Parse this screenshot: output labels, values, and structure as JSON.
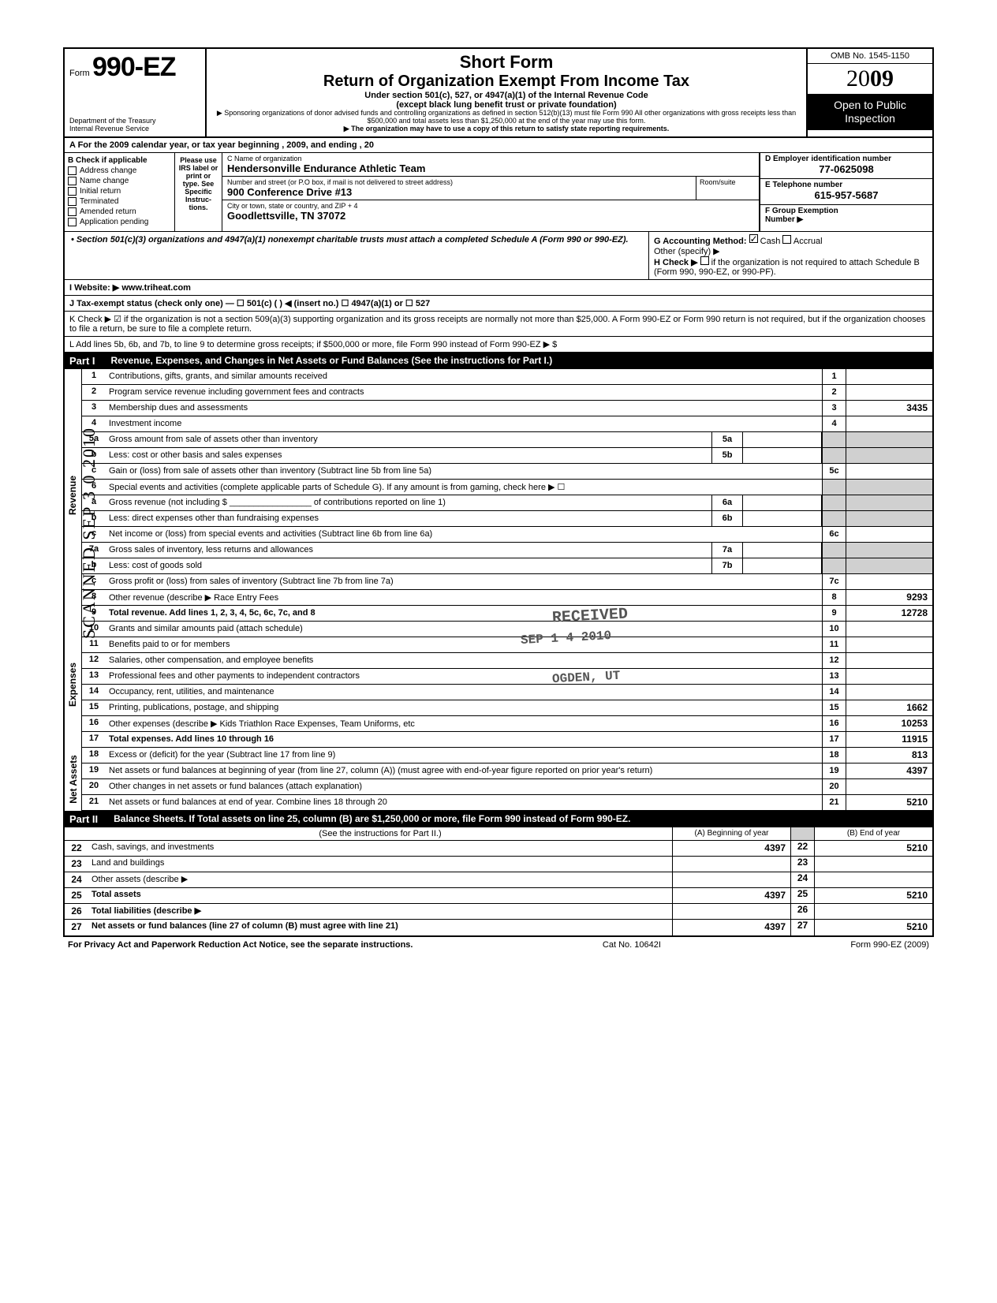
{
  "header": {
    "form_prefix": "Form",
    "form_number": "990-EZ",
    "dept1": "Department of the Treasury",
    "dept2": "Internal Revenue Service",
    "title1": "Short Form",
    "title2": "Return of Organization Exempt From Income Tax",
    "subtitle": "Under section 501(c), 527, or 4947(a)(1) of the Internal Revenue Code",
    "subtitle2": "(except black lung benefit trust or private foundation)",
    "micro1": "▶ Sponsoring organizations of donor advised funds and controlling organizations as defined in section 512(b)(13) must file Form 990  All other organizations with gross receipts less than $500,000 and total assets less than $1,250,000 at the end of the year may use this form.",
    "micro2": "▶ The organization may have to use a copy of this return to satisfy state reporting requirements.",
    "omb": "OMB No. 1545-1150",
    "year_prefix": "20",
    "year_bold": "09",
    "open_public": "Open to Public Inspection"
  },
  "row_a": "A  For the 2009 calendar year, or tax year beginning                                                          , 2009, and ending                                              , 20",
  "section_b": {
    "title": "B  Check if applicable",
    "items": [
      "Address change",
      "Name change",
      "Initial return",
      "Terminated",
      "Amended return",
      "Application pending"
    ]
  },
  "label_col": "Please use IRS label or print or type. See Specific Instruc-tions.",
  "section_c": {
    "name_label": "C  Name of organization",
    "name": "Hendersonville Endurance Athletic Team",
    "addr_label": "Number and street (or P.O  box, if mail is not delivered to street address)",
    "addr": "900 Conference Drive #13",
    "room_label": "Room/suite",
    "city_label": "City or town, state or country, and ZIP + 4",
    "city": "Goodlettsville, TN 37072"
  },
  "section_d": {
    "label": "D Employer identification number",
    "value": "77-0625098"
  },
  "section_e": {
    "label": "E Telephone number",
    "value": "615-957-5687"
  },
  "section_f": {
    "label": "F Group Exemption",
    "label2": "Number ▶"
  },
  "gh": {
    "bullet": "• Section 501(c)(3) organizations and 4947(a)(1) nonexempt charitable trusts must attach a completed Schedule A (Form 990 or 990-EZ).",
    "g_label": "G  Accounting Method:",
    "g_cash": "Cash",
    "g_accrual": "Accrual",
    "g_other": "Other (specify) ▶",
    "h_label": "H  Check ▶",
    "h_text": "if the organization is not required to attach Schedule B (Form 990, 990-EZ, or 990-PF)."
  },
  "website": {
    "label": "I   Website: ▶",
    "value": "www.triheat.com"
  },
  "j_line": "J  Tax-exempt status (check only one) —  ☐ 501(c) (        ) ◀ (insert no.)   ☐ 4947(a)(1) or    ☐ 527",
  "k_line": "K  Check ▶    ☑    if the organization is not a section 509(a)(3) supporting organization and its gross receipts are normally not more than $25,000.  A Form 990-EZ or Form 990 return is not required,  but if the organization chooses to file a return, be sure to file a complete return.",
  "l_line": "L  Add lines 5b, 6b, and 7b, to line 9 to determine gross receipts; if $500,000 or more, file Form 990 instead of Form 990-EZ         ▶      $",
  "part1": {
    "label": "Part I",
    "title": "Revenue, Expenses, and Changes in Net Assets or Fund Balances (See the instructions for Part I.)"
  },
  "vert_labels": {
    "revenue": "Revenue",
    "expenses": "Expenses",
    "netassets": "Net Assets"
  },
  "lines": {
    "1": {
      "desc": "Contributions, gifts, grants, and similar amounts received",
      "box": "1",
      "val": ""
    },
    "2": {
      "desc": "Program service revenue including government fees and contracts",
      "box": "2",
      "val": ""
    },
    "3": {
      "desc": "Membership dues and assessments",
      "box": "3",
      "val": "3435"
    },
    "4": {
      "desc": "Investment income",
      "box": "4",
      "val": ""
    },
    "5a": {
      "desc": "Gross amount from sale of assets other than inventory",
      "sub": "5a"
    },
    "5b": {
      "desc": "Less: cost or other basis and sales expenses",
      "sub": "5b"
    },
    "5c": {
      "desc": "Gain or (loss) from sale of assets other than inventory (Subtract line 5b from line 5a)",
      "box": "5c",
      "val": ""
    },
    "6": {
      "desc": "Special events and activities (complete applicable parts of Schedule G). If any amount is from gaming, check here ▶ ☐"
    },
    "6a": {
      "desc": "Gross revenue (not including $ _________________ of contributions reported on line 1)",
      "sub": "6a"
    },
    "6b": {
      "desc": "Less: direct expenses other than fundraising expenses",
      "sub": "6b"
    },
    "6c": {
      "desc": "Net income or (loss) from special events and activities (Subtract line 6b from line 6a)",
      "box": "6c",
      "val": ""
    },
    "7a": {
      "desc": "Gross sales of inventory, less returns and allowances",
      "sub": "7a"
    },
    "7b": {
      "desc": "Less: cost of goods sold",
      "sub": "7b"
    },
    "7c": {
      "desc": "Gross profit or (loss) from sales of inventory (Subtract line 7b from line 7a)",
      "box": "7c",
      "val": ""
    },
    "8": {
      "desc": "Other revenue (describe ▶      Race Entry Fees",
      "box": "8",
      "val": "9293",
      "paren": ")"
    },
    "9": {
      "desc": "Total revenue. Add lines 1, 2, 3, 4, 5c, 6c, 7c, and 8",
      "box": "9",
      "val": "12728",
      "arrow": "▶",
      "bold": true
    },
    "10": {
      "desc": "Grants and similar amounts paid (attach schedule)",
      "box": "10",
      "val": ""
    },
    "11": {
      "desc": "Benefits paid to or for members",
      "box": "11",
      "val": ""
    },
    "12": {
      "desc": "Salaries, other compensation, and employee benefits",
      "box": "12",
      "val": ""
    },
    "13": {
      "desc": "Professional fees and other payments to independent contractors",
      "box": "13",
      "val": ""
    },
    "14": {
      "desc": "Occupancy, rent, utilities, and maintenance",
      "box": "14",
      "val": ""
    },
    "15": {
      "desc": "Printing, publications, postage, and shipping",
      "box": "15",
      "val": "1662"
    },
    "16": {
      "desc": "Other expenses (describe ▶     Kids Triathlon Race Expenses, Team Uniforms, etc",
      "box": "16",
      "val": "10253",
      "paren": ")"
    },
    "17": {
      "desc": "Total expenses. Add lines 10 through 16",
      "box": "17",
      "val": "11915",
      "arrow": "▶",
      "bold": true
    },
    "18": {
      "desc": "Excess or (deficit) for the year (Subtract line 17 from line 9)",
      "box": "18",
      "val": "813"
    },
    "19": {
      "desc": "Net assets or fund balances at beginning of year (from line 27, column (A)) (must agree with end-of-year figure reported on prior year's return)",
      "box": "19",
      "val": "4397"
    },
    "20": {
      "desc": "Other changes in net assets or fund balances (attach explanation)",
      "box": "20",
      "val": ""
    },
    "21": {
      "desc": "Net assets or fund balances at end of year. Combine lines 18 through 20",
      "box": "21",
      "val": "5210",
      "arrow": "▶"
    }
  },
  "part2": {
    "label": "Part II",
    "title": "Balance Sheets. If Total assets on line 25, column (B) are $1,250,000 or more, file Form 990 instead of Form 990-EZ.",
    "instruction": "(See the instructions for Part II.)",
    "col_a": "(A) Beginning of year",
    "col_b": "(B) End of year"
  },
  "bs": {
    "22": {
      "desc": "Cash, savings, and investments",
      "a": "4397",
      "n": "22",
      "b": "5210"
    },
    "23": {
      "desc": "Land and buildings",
      "a": "",
      "n": "23",
      "b": ""
    },
    "24": {
      "desc": "Other assets (describe ▶",
      "a": "",
      "n": "24",
      "b": "",
      "paren": ")"
    },
    "25": {
      "desc": "Total assets",
      "a": "4397",
      "n": "25",
      "b": "5210",
      "bold": true
    },
    "26": {
      "desc": "Total liabilities (describe ▶",
      "a": "",
      "n": "26",
      "b": "",
      "paren": ")",
      "bold": true
    },
    "27": {
      "desc": "Net assets or fund balances (line 27 of column (B) must agree with line 21)",
      "a": "4397",
      "n": "27",
      "b": "5210",
      "bold": true
    }
  },
  "footer": {
    "left": "For Privacy Act and Paperwork Reduction Act Notice, see the separate instructions.",
    "mid": "Cat  No. 10642I",
    "right": "Form 990-EZ  (2009)"
  },
  "stamps": {
    "received": "RECEIVED",
    "date": "SEP 1 4 2010",
    "ogden": "OGDEN, UT",
    "scanned": "SCANNED SEP 3 0 2010"
  }
}
